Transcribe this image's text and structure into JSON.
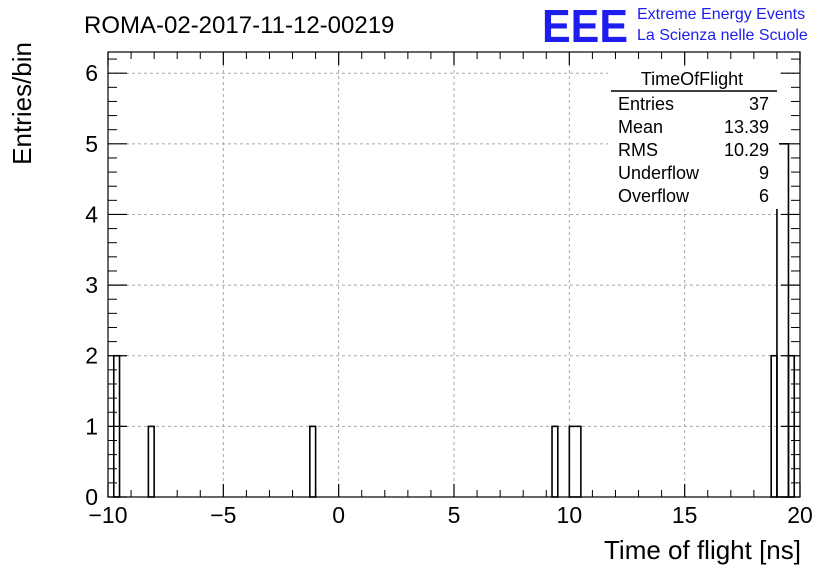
{
  "header": {
    "title": "ROMA-02-2017-11-12-00219",
    "logo_text": "EEE",
    "brand_line1": "Extreme Energy Events",
    "brand_line2": "La Scienza nelle Scuole",
    "brand_color": "#1d1df0"
  },
  "stats": {
    "name": "TimeOfFlight",
    "rows": [
      {
        "label": "Entries",
        "value": "37"
      },
      {
        "label": "Mean",
        "value": "13.39"
      },
      {
        "label": "RMS",
        "value": "10.29"
      },
      {
        "label": "Underflow",
        "value": "9"
      },
      {
        "label": "Overflow",
        "value": "6"
      }
    ]
  },
  "chart_data": {
    "type": "bar",
    "title": "ROMA-02-2017-11-12-00219",
    "xlabel": "Time of flight [ns]",
    "ylabel": "Entries/bin",
    "xlim": [
      -10,
      20
    ],
    "ylim": [
      0,
      6.3
    ],
    "grid": true,
    "xticks": [
      -10,
      -5,
      0,
      5,
      10,
      15,
      20
    ],
    "xtick_labels": [
      "−10",
      "−5",
      "0",
      "5",
      "10",
      "15",
      "20"
    ],
    "yticks": [
      0,
      1,
      2,
      3,
      4,
      5,
      6
    ],
    "yticks_labels": [
      "0",
      "1",
      "2",
      "3",
      "4",
      "5",
      "6"
    ],
    "bins": [
      {
        "x0": -9.75,
        "x1": -9.5,
        "value": 2
      },
      {
        "x0": -8.25,
        "x1": -8.0,
        "value": 1
      },
      {
        "x0": -1.25,
        "x1": -1.0,
        "value": 1
      },
      {
        "x0": 9.25,
        "x1": 9.5,
        "value": 1
      },
      {
        "x0": 10.0,
        "x1": 10.5,
        "value": 1
      },
      {
        "x0": 18.75,
        "x1": 19.0,
        "value": 2
      },
      {
        "x0": 19.0,
        "x1": 19.5,
        "value": 5
      },
      {
        "x0": 19.5,
        "x1": 19.75,
        "value": 2
      }
    ]
  }
}
